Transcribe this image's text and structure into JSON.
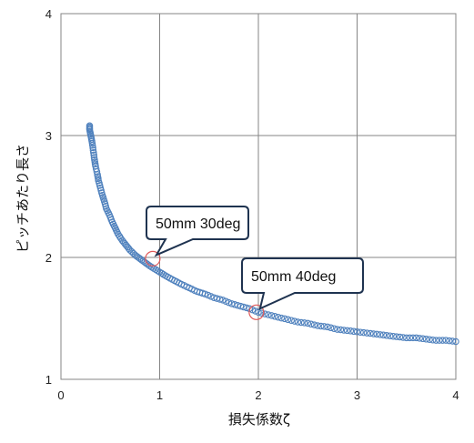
{
  "chart_data": {
    "type": "scatter",
    "title": "",
    "xlabel": "損失係数ζ",
    "ylabel": "ピッチあたり長さ",
    "xlim": [
      0,
      4
    ],
    "ylim": [
      1,
      4
    ],
    "xticks": [
      "0",
      "1",
      "2",
      "3",
      "4"
    ],
    "yticks": [
      "1",
      "2",
      "3",
      "4"
    ],
    "grid": true,
    "legend": "none",
    "marker_color": "#4f81bd",
    "highlight_color": "#e05a5a",
    "series": [
      {
        "points": [
          [
            0.29,
            3.08
          ],
          [
            0.29,
            3.05
          ],
          [
            0.3,
            3.01
          ],
          [
            0.31,
            2.97
          ],
          [
            0.32,
            2.92
          ],
          [
            0.33,
            2.86
          ],
          [
            0.34,
            2.8
          ],
          [
            0.35,
            2.75
          ],
          [
            0.37,
            2.68
          ],
          [
            0.38,
            2.63
          ],
          [
            0.4,
            2.57
          ],
          [
            0.42,
            2.51
          ],
          [
            0.44,
            2.46
          ],
          [
            0.46,
            2.4
          ],
          [
            0.49,
            2.35
          ],
          [
            0.52,
            2.29
          ],
          [
            0.55,
            2.24
          ],
          [
            0.58,
            2.19
          ],
          [
            0.62,
            2.14
          ],
          [
            0.66,
            2.1
          ],
          [
            0.7,
            2.06
          ],
          [
            0.75,
            2.02
          ],
          [
            0.8,
            1.99
          ],
          [
            0.85,
            1.96
          ],
          [
            0.9,
            1.93
          ],
          [
            0.96,
            1.9
          ],
          [
            1.02,
            1.87
          ],
          [
            1.08,
            1.84
          ],
          [
            1.15,
            1.81
          ],
          [
            1.22,
            1.78
          ],
          [
            1.3,
            1.75
          ],
          [
            1.38,
            1.72
          ],
          [
            1.46,
            1.7
          ],
          [
            1.55,
            1.67
          ],
          [
            1.64,
            1.65
          ],
          [
            1.73,
            1.62
          ],
          [
            1.82,
            1.6
          ],
          [
            1.91,
            1.58
          ],
          [
            2.0,
            1.55
          ],
          [
            2.1,
            1.53
          ],
          [
            2.2,
            1.51
          ],
          [
            2.3,
            1.49
          ],
          [
            2.4,
            1.47
          ],
          [
            2.5,
            1.46
          ],
          [
            2.6,
            1.44
          ],
          [
            2.7,
            1.43
          ],
          [
            2.8,
            1.41
          ],
          [
            2.9,
            1.4
          ],
          [
            3.0,
            1.39
          ],
          [
            3.1,
            1.38
          ],
          [
            3.2,
            1.37
          ],
          [
            3.3,
            1.36
          ],
          [
            3.4,
            1.35
          ],
          [
            3.5,
            1.34
          ],
          [
            3.6,
            1.34
          ],
          [
            3.7,
            1.33
          ],
          [
            3.8,
            1.32
          ],
          [
            3.9,
            1.32
          ],
          [
            4.0,
            1.31
          ]
        ]
      }
    ],
    "annotations": [
      {
        "text": "50mm 30deg",
        "x": 0.93,
        "y": 1.99
      },
      {
        "text": "50mm 40deg",
        "x": 1.98,
        "y": 1.55
      }
    ]
  }
}
